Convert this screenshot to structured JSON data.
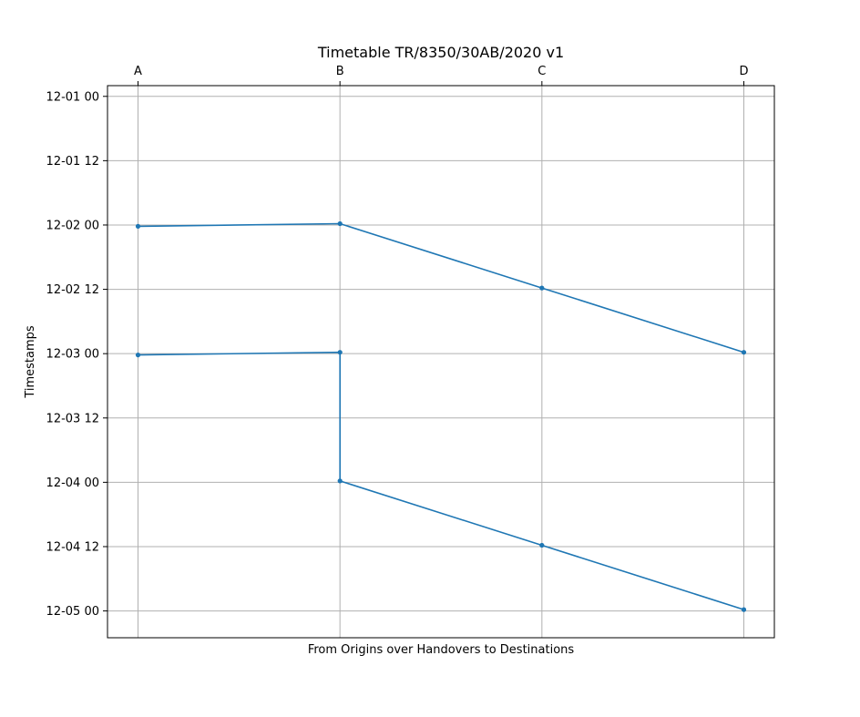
{
  "chart_data": {
    "type": "line",
    "title": "Timetable TR/8350/30AB/2020 v1",
    "xlabel": "From Origins over Handovers to Destinations",
    "ylabel": "Timestamps",
    "categories": [
      "A",
      "B",
      "C",
      "D"
    ],
    "x_axis_position": "top",
    "y_axis_inverted": true,
    "yticks": [
      "12-01 00",
      "12-01 12",
      "12-02 00",
      "12-02 12",
      "12-03 00",
      "12-03 12",
      "12-04 00",
      "12-04 12",
      "12-05 00"
    ],
    "ylim": [
      "2020-11-30 22:00",
      "2020-12-05 05:00"
    ],
    "grid": true,
    "series": [
      {
        "points": [
          {
            "x": "A",
            "y": "2020-12-02 00:15"
          },
          {
            "x": "B",
            "y": "2020-12-01 23:45"
          },
          {
            "x": "C",
            "y": "2020-12-02 11:45"
          },
          {
            "x": "D",
            "y": "2020-12-02 23:45"
          }
        ]
      },
      {
        "points": [
          {
            "x": "A",
            "y": "2020-12-03 00:15"
          },
          {
            "x": "B",
            "y": "2020-12-02 23:45"
          },
          {
            "x": "B",
            "y": "2020-12-03 23:45"
          },
          {
            "x": "C",
            "y": "2020-12-04 11:45"
          },
          {
            "x": "D",
            "y": "2020-12-04 23:45"
          }
        ]
      }
    ]
  }
}
